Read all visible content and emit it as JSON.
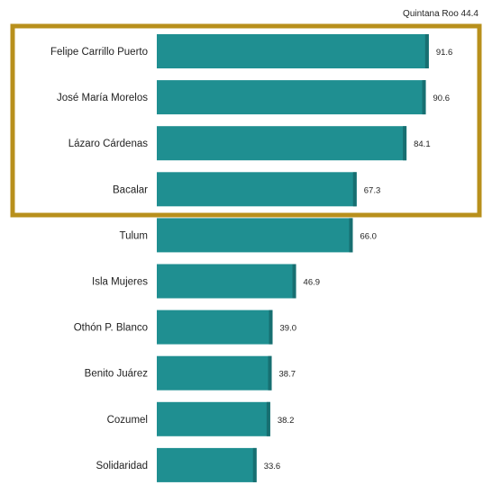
{
  "chart_data": {
    "type": "bar",
    "orientation": "horizontal",
    "reference_label": "Quintana Roo 44.4",
    "categories": [
      "Felipe Carrillo Puerto",
      "José María Morelos",
      "Lázaro Cárdenas",
      "Bacalar",
      "Tulum",
      "Isla Mujeres",
      "Othón P. Blanco",
      "Benito Juárez",
      "Cozumel",
      "Solidaridad"
    ],
    "values": [
      91.6,
      90.6,
      84.1,
      67.3,
      66.0,
      46.9,
      39.0,
      38.7,
      38.2,
      33.6
    ],
    "value_labels": [
      "91.6",
      "90.6",
      "84.1",
      "67.3",
      "66.0",
      "46.9",
      "39.0",
      "38.7",
      "38.2",
      "33.6"
    ],
    "highlighted_categories": [
      "Felipe Carrillo Puerto",
      "José María Morelos",
      "Lázaro Cárdenas",
      "Bacalar"
    ],
    "colors": {
      "bar": "#1f8f91",
      "bar_dark": "#176f71",
      "highlight_box": "#b8901c"
    },
    "grid": false,
    "legend": "none"
  }
}
